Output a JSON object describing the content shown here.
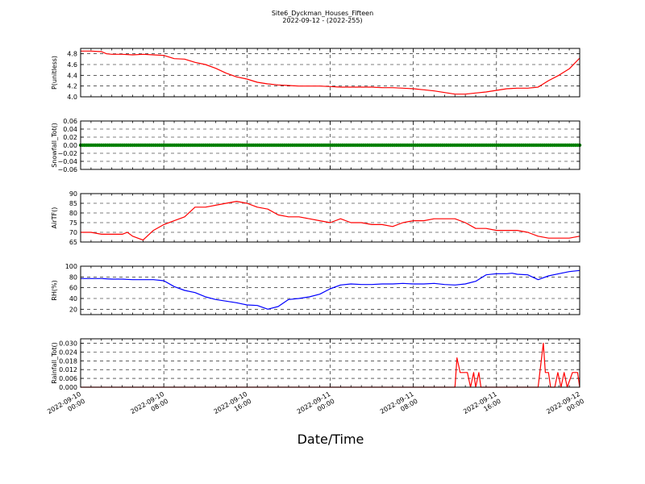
{
  "figure": {
    "title_line1": "Site6_Dyckman_Houses_Fifteen",
    "title_line2": "2022-09-12 - (2022-255)",
    "xlabel": "Date/Time"
  },
  "chart_data": [
    {
      "type": "line",
      "ylabel": "P(unitless)",
      "ylim": [
        4.0,
        4.9
      ],
      "yticks": [
        "4.0",
        "4.2",
        "4.4",
        "4.6",
        "4.8"
      ],
      "ytick_values": [
        4.0,
        4.2,
        4.4,
        4.6,
        4.8
      ],
      "grid": true,
      "color": "#ff0000",
      "x": [
        0,
        1,
        2,
        2.5,
        3,
        4,
        5,
        6,
        7,
        8,
        9,
        10,
        11,
        12,
        13,
        14,
        15,
        16,
        17,
        18,
        19,
        20,
        21,
        22,
        23,
        24,
        25,
        26,
        27,
        28,
        29,
        30,
        31,
        32,
        33,
        34,
        35,
        36,
        37,
        38,
        39,
        40,
        41,
        42,
        43,
        44,
        45,
        46,
        47,
        48
      ],
      "y": [
        4.85,
        4.85,
        4.84,
        4.8,
        4.79,
        4.79,
        4.78,
        4.79,
        4.78,
        4.77,
        4.71,
        4.7,
        4.64,
        4.6,
        4.53,
        4.44,
        4.37,
        4.33,
        4.27,
        4.24,
        4.22,
        4.21,
        4.2,
        4.2,
        4.2,
        4.19,
        4.18,
        4.18,
        4.18,
        4.18,
        4.17,
        4.17,
        4.16,
        4.15,
        4.13,
        4.11,
        4.08,
        4.05,
        4.05,
        4.07,
        4.09,
        4.12,
        4.15,
        4.16,
        4.16,
        4.18,
        4.3,
        4.4,
        4.52,
        4.72
      ]
    },
    {
      "type": "scatter",
      "ylabel": "Snowfall_Tot()",
      "ylim": [
        -0.06,
        0.06
      ],
      "yticks": [
        "−0.06",
        "−0.04",
        "−0.02",
        "0.00",
        "0.02",
        "0.04",
        "0.06"
      ],
      "ytick_values": [
        -0.06,
        -0.04,
        -0.02,
        0.0,
        0.02,
        0.04,
        0.06
      ],
      "grid": true,
      "color": "#008000",
      "x_range": [
        0,
        48
      ],
      "y_constant": 0.0
    },
    {
      "type": "line",
      "ylabel": "AirTF()",
      "ylim": [
        65,
        90
      ],
      "yticks": [
        "65",
        "70",
        "75",
        "80",
        "85",
        "90"
      ],
      "ytick_values": [
        65,
        70,
        75,
        80,
        85,
        90
      ],
      "grid": true,
      "color": "#ff0000",
      "x": [
        0,
        1,
        2,
        3,
        4,
        4.5,
        5,
        5.5,
        6,
        7,
        8,
        9,
        10,
        11,
        12,
        13,
        14,
        15,
        16,
        17,
        18,
        19,
        20,
        21,
        22,
        23,
        24,
        25,
        26,
        27,
        28,
        29,
        30,
        31,
        32,
        33,
        34,
        35,
        36,
        37,
        38,
        39,
        40,
        41,
        42,
        43,
        44,
        45,
        46,
        47,
        48
      ],
      "y": [
        70,
        70,
        69,
        69,
        69,
        70,
        68,
        67,
        66,
        71,
        74,
        76,
        78,
        83,
        83,
        84,
        85,
        86,
        85,
        83,
        82,
        79,
        78,
        78,
        77,
        76,
        75,
        77,
        75,
        75,
        74,
        74,
        73,
        75,
        76,
        76,
        77,
        77,
        77,
        75,
        72,
        72,
        71,
        71,
        71,
        70,
        68,
        67,
        67,
        67,
        68
      ]
    },
    {
      "type": "line",
      "ylabel": "RH(%)",
      "ylim": [
        10,
        100
      ],
      "yticks": [
        "20",
        "40",
        "60",
        "80",
        "100"
      ],
      "ytick_values": [
        20,
        40,
        60,
        80,
        100
      ],
      "grid": true,
      "color": "#0000ff",
      "x": [
        0,
        1,
        2,
        3,
        4,
        5,
        6,
        7,
        8,
        9,
        10,
        11,
        12,
        13,
        14,
        15,
        15.5,
        16,
        17,
        18,
        19,
        20,
        21,
        22,
        23,
        24,
        25,
        26,
        27,
        28,
        29,
        30,
        31,
        32,
        33,
        34,
        35,
        36,
        37,
        38,
        39,
        40,
        41,
        41.5,
        42,
        43,
        44,
        45,
        46,
        47,
        48
      ],
      "y": [
        77,
        77,
        77,
        76,
        76,
        75,
        75,
        75,
        73,
        62,
        55,
        51,
        43,
        38,
        35,
        32,
        30,
        28,
        27,
        20,
        25,
        38,
        40,
        43,
        48,
        58,
        65,
        67,
        66,
        66,
        67,
        67,
        68,
        67,
        67,
        68,
        66,
        65,
        67,
        72,
        84,
        86,
        86,
        87,
        85,
        84,
        75,
        82,
        86,
        90,
        92
      ]
    },
    {
      "type": "line",
      "ylabel": "Rainfall_Tot()",
      "ylim": [
        0.0,
        0.033
      ],
      "yticks": [
        "0.000",
        "0.006",
        "0.012",
        "0.018",
        "0.024",
        "0.030"
      ],
      "ytick_values": [
        0.0,
        0.006,
        0.012,
        0.018,
        0.024,
        0.03
      ],
      "grid": true,
      "color": "#ff0000",
      "x": [
        0,
        36,
        36.2,
        36.5,
        37.2,
        37.5,
        37.8,
        38.0,
        38.3,
        38.5,
        38.8,
        44,
        44.5,
        44.7,
        45.0,
        45.2,
        45.6,
        45.9,
        46.2,
        46.5,
        46.8,
        47.3,
        47.8,
        48
      ],
      "y": [
        0,
        0,
        0.02,
        0.01,
        0.01,
        0,
        0.01,
        0,
        0.01,
        0,
        0,
        0,
        0.03,
        0.01,
        0.01,
        0,
        0,
        0.01,
        0,
        0.01,
        0,
        0.01,
        0.01,
        0
      ]
    }
  ],
  "x_axis": {
    "range": [
      0,
      48
    ],
    "tick_positions": [
      0,
      8,
      16,
      24,
      32,
      40,
      48
    ],
    "tick_labels": [
      [
        "2022-09-10",
        "00:00"
      ],
      [
        "2022-09-10",
        "08:00"
      ],
      [
        "2022-09-10",
        "16:00"
      ],
      [
        "2022-09-11",
        "00:00"
      ],
      [
        "2022-09-11",
        "08:00"
      ],
      [
        "2022-09-11",
        "16:00"
      ],
      [
        "2022-09-12",
        "00:00"
      ]
    ]
  }
}
